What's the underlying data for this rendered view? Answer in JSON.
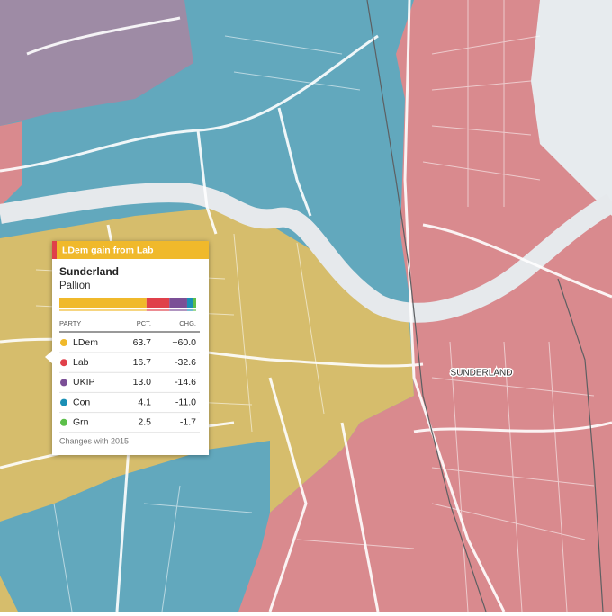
{
  "map": {
    "place_label": "SUNDERLAND"
  },
  "tooltip": {
    "header": "LDem gain from Lab",
    "header_color": "#f0b92b",
    "gain_from_color": "#e0404a",
    "title": "Sunderland",
    "subtitle": "Pallion",
    "columns": [
      "PARTY",
      "PCT.",
      "CHG."
    ],
    "rows": [
      {
        "party": "LDem",
        "color": "#f0b92b",
        "pct": 63.7,
        "chg": {
          "value": 60,
          "label": "+60.0"
        }
      },
      {
        "party": "Lab",
        "color": "#e0404a",
        "pct": 16.7,
        "chg": -32.6
      },
      {
        "party": "UKIP",
        "color": "#7b4f96",
        "pct": {
          "value": 13,
          "label": "13.0"
        },
        "chg": -14.6
      },
      {
        "party": "Con",
        "color": "#1a8fb5",
        "pct": 4.1,
        "chg": {
          "value": -11,
          "label": "-11.0"
        }
      },
      {
        "party": "Grn",
        "color": "#5cbf4a",
        "pct": 2.5,
        "chg": -1.7
      }
    ],
    "footnote": "Changes with 2015"
  }
}
